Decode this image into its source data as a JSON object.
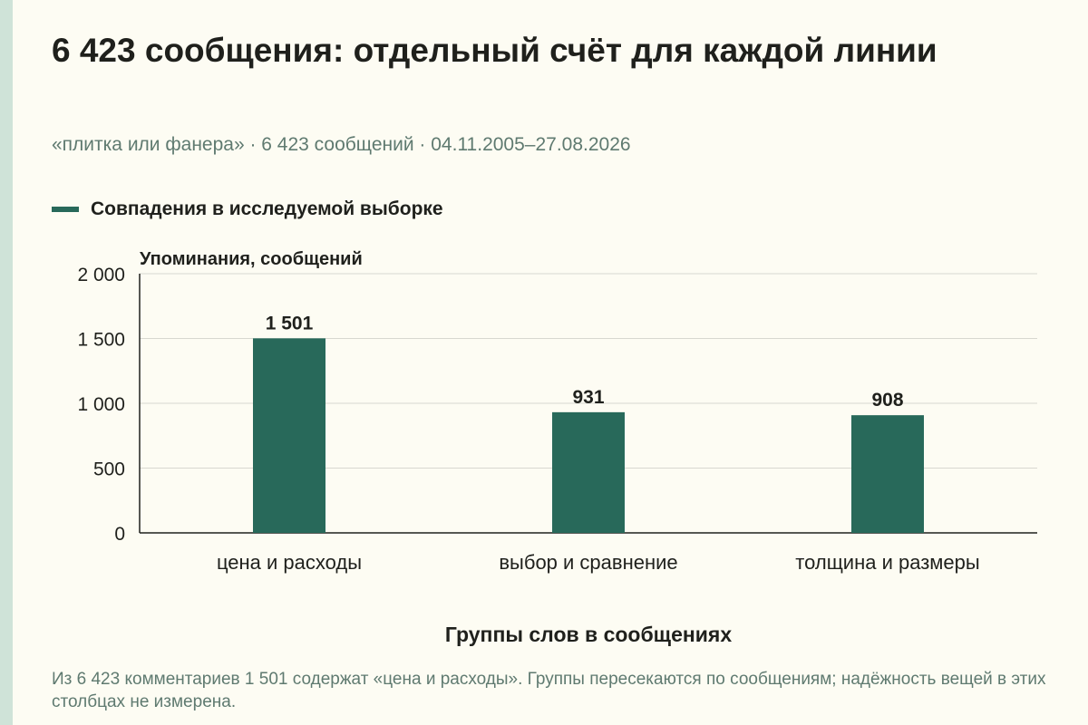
{
  "header": {
    "title": "6 423 сообщения: отдельный счёт для каждой линии",
    "subtitle": "«плитка или фанера» · 6 423 сообщений · 04.11.2005–27.08.2026"
  },
  "legend": {
    "label": "Совпадения в исследуемой выборке"
  },
  "caption": "Из 6 423 комментариев 1 501 содержат «цена и расходы». Группы пересекаются по сообщениям; надёжность вещей в этих столбцах не измерена.",
  "colors": {
    "bar": "#28695a",
    "grid": "#d8d8d0",
    "axis": "#1f201c",
    "background": "#fdfcf3"
  },
  "chart_data": {
    "type": "bar",
    "ylabel": "Упоминания, сообщений",
    "xlabel": "Группы слов в сообщениях",
    "categories": [
      "цена и расходы",
      "выбор и сравнение",
      "толщина и размеры"
    ],
    "series": [
      {
        "name": "Совпадения в исследуемой выборке",
        "values": [
          1501,
          931,
          908
        ],
        "labels": [
          "1 501",
          "931",
          "908"
        ]
      }
    ],
    "ylim": [
      0,
      2000
    ],
    "yticks": [
      0,
      500,
      1000,
      1500,
      2000
    ],
    "ytick_labels": [
      "0",
      "500",
      "1 000",
      "1 500",
      "2 000"
    ],
    "grid": true,
    "legend_position": "top-left"
  }
}
